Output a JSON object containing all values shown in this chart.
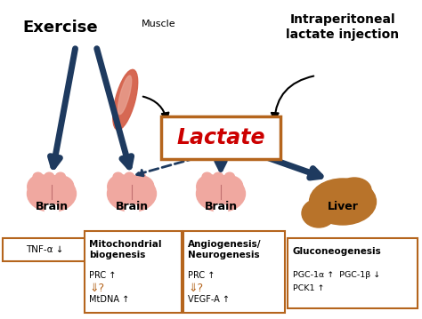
{
  "bg_color": "#ffffff",
  "exercise_label": "Exercise",
  "muscle_label": "Muscle",
  "lactate_label": "Lactate",
  "intraperitoneal_label": "Intraperitoneal\nlactate injection",
  "liver_label": "Liver",
  "navy": "#1e3a5f",
  "orange": "#b5651d",
  "red": "#cc0000",
  "brain_color": "#f0a8a0",
  "liver_color": "#b8732a",
  "box1_text": "TNF-α ↓",
  "box2_title": "Mitochondrial\nbiogenesis",
  "box2_lines": [
    "PRC ↑",
    "⇓?",
    "MtDNA ↑"
  ],
  "box3_title": "Angiogenesis/\nNeurogenesis",
  "box3_lines": [
    "PRC ↑",
    "⇓?",
    "VEGF-A ↑"
  ],
  "box4_title": "Gluconeogenesis",
  "box4_lines": [
    "PGC-1α ↑  PGC-1β ↓",
    "PCK1 ↑"
  ]
}
